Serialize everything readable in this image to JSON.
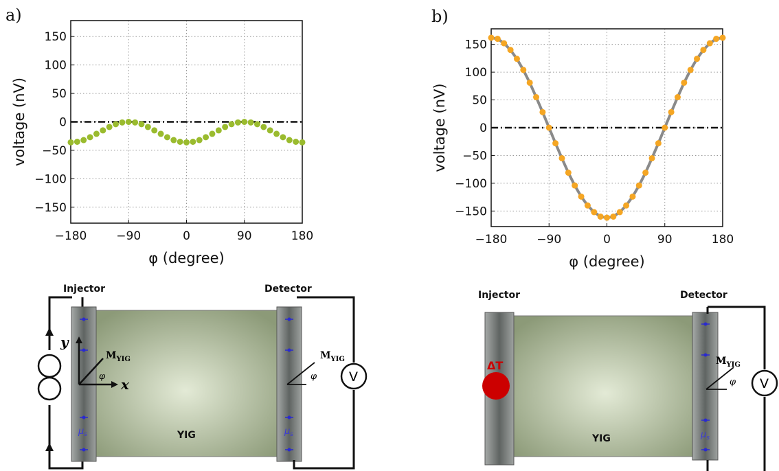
{
  "chart_data": [
    {
      "type": "scatter",
      "panel": "a)",
      "x_label": "φ (degree)",
      "y_label": "voltage (nV)",
      "color": "#9abb2e",
      "grid": true,
      "zero_line": true,
      "x": [
        -180,
        -170,
        -160,
        -150,
        -140,
        -130,
        -120,
        -110,
        -100,
        -90,
        -80,
        -70,
        -60,
        -50,
        -40,
        -30,
        -20,
        -10,
        0,
        10,
        20,
        30,
        40,
        50,
        60,
        70,
        80,
        90,
        100,
        110,
        120,
        130,
        140,
        150,
        160,
        170,
        180
      ],
      "values": [
        -36,
        -35,
        -32,
        -27,
        -21,
        -15,
        -9,
        -4,
        -1,
        0,
        -1,
        -4,
        -9,
        -15,
        -21,
        -27,
        -32,
        -35,
        -36,
        -35,
        -32,
        -27,
        -21,
        -15,
        -9,
        -4,
        -1,
        0,
        -1,
        -4,
        -9,
        -15,
        -21,
        -27,
        -32,
        -35,
        -36
      ],
      "xlim": [
        -180,
        180
      ],
      "xticks": [
        {
          "value": -180,
          "label": "−180"
        },
        {
          "value": -90,
          "label": "−90"
        },
        0,
        90,
        180
      ],
      "ylim": [
        -178,
        178
      ],
      "yticks": [
        {
          "value": -150,
          "label": "−150"
        },
        {
          "value": -100,
          "label": "−100"
        },
        {
          "value": -50,
          "label": "−50"
        },
        0,
        50,
        100,
        150
      ]
    },
    {
      "type": "scatter",
      "panel": "b)",
      "x_label": "φ (degree)",
      "y_label": "voltage (nV)",
      "color": "#f5a623",
      "line": true,
      "line_color": "#8a8a8a",
      "grid": true,
      "zero_line": true,
      "x": [
        -180,
        -170,
        -160,
        -150,
        -140,
        -130,
        -120,
        -110,
        -100,
        -90,
        -80,
        -70,
        -60,
        -50,
        -40,
        -30,
        -20,
        -10,
        0,
        10,
        20,
        30,
        40,
        50,
        60,
        70,
        80,
        90,
        100,
        110,
        120,
        130,
        140,
        150,
        160,
        170,
        180
      ],
      "values": [
        162,
        160,
        152,
        140,
        124,
        104,
        81,
        55,
        28,
        0,
        -28,
        -55,
        -81,
        -104,
        -124,
        -140,
        -152,
        -160,
        -162,
        -160,
        -152,
        -140,
        -124,
        -104,
        -81,
        -55,
        -28,
        0,
        28,
        55,
        81,
        104,
        124,
        140,
        152,
        160,
        162
      ],
      "xlim": [
        -180,
        180
      ],
      "xticks": [
        {
          "value": -180,
          "label": "−180"
        },
        {
          "value": -90,
          "label": "−90"
        },
        0,
        90,
        180
      ],
      "ylim": [
        -178,
        178
      ],
      "yticks": [
        {
          "value": -150,
          "label": "−150"
        },
        {
          "value": -100,
          "label": "−100"
        },
        {
          "value": -50,
          "label": "−50"
        },
        0,
        50,
        100,
        150
      ]
    }
  ],
  "diagrams": [
    {
      "injector": "Injector",
      "detector": "Detector",
      "material": "YIG",
      "y_axis": "y",
      "x_axis": "x",
      "magnetization_left": {
        "symbol": "M",
        "subscript": "YIG"
      },
      "angle_left": "φ",
      "magnetization_right": {
        "symbol": "M",
        "subscript": "YIG"
      },
      "angle_right": "φ",
      "spin_left": {
        "symbol": "μ",
        "subscript": "s"
      },
      "spin_right": {
        "symbol": "μ",
        "subscript": "s"
      },
      "voltmeter": "V"
    },
    {
      "injector": "Injector",
      "detector": "Detector",
      "material": "YIG",
      "heat": "ΔT",
      "magnetization_right": {
        "symbol": "M",
        "subscript": "YIG"
      },
      "angle_right": "φ",
      "spin_right": {
        "symbol": "μ",
        "subscript": "s"
      },
      "voltmeter": "V"
    }
  ]
}
